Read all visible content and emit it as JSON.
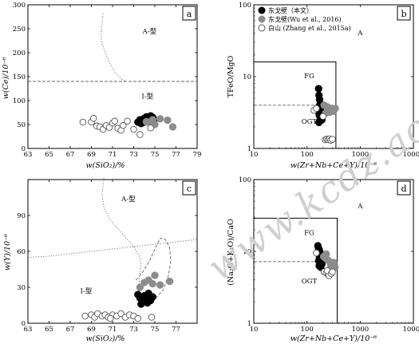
{
  "watermark": "www.kcdz.ac.cn",
  "colors": {
    "this_study": "#000000",
    "wu_2016": "#8c8c8c",
    "zhang_2015": "#ffffff",
    "zhang_stroke": "#555555",
    "boundary": "#666666",
    "frame": "#000000"
  },
  "legend": [
    {
      "label": "东戈壁（本文）",
      "fill": "#000000",
      "stroke": "#000000"
    },
    {
      "label": "东戈壁(Wu et al., 2016)",
      "fill": "#8c8c8c",
      "stroke": "#8c8c8c"
    },
    {
      "label": "白山 (Zhang et al., 2015a)",
      "fill": "#ffffff",
      "stroke": "#555555"
    }
  ],
  "chart_data": [
    {
      "id": "a",
      "type": "scatter",
      "panel_label": "a",
      "xlabel": "w(SiO₂)/%",
      "ylabel": "w(Ce)/10⁻⁶",
      "xlim": [
        63,
        79
      ],
      "ylim": [
        0,
        300
      ],
      "xticks": [
        63,
        65,
        67,
        69,
        71,
        73,
        75,
        77,
        79
      ],
      "yticks": [
        0,
        50,
        100,
        150,
        200,
        250,
        300
      ],
      "region_labels": [
        {
          "text": "A-型",
          "x": 74.5,
          "y": 240
        },
        {
          "text": "I-型",
          "x": 74.3,
          "y": 104
        }
      ],
      "boundaries": [
        {
          "style": "dash",
          "points": [
            [
              63,
              140
            ],
            [
              79,
              140
            ]
          ]
        },
        {
          "style": "dot",
          "points": [
            [
              70.1,
              282
            ],
            [
              70.0,
              260
            ],
            [
              69.9,
              240
            ],
            [
              70.0,
              220
            ],
            [
              70.3,
              200
            ],
            [
              70.7,
              180
            ],
            [
              71.2,
              160
            ],
            [
              71.8,
              145
            ],
            [
              72.3,
              140
            ]
          ]
        }
      ],
      "series": [
        {
          "name": "东戈壁（本文）",
          "points": [
            [
              73.4,
              55
            ],
            [
              73.6,
              60
            ],
            [
              73.8,
              58
            ],
            [
              74.0,
              63
            ],
            [
              74.2,
              66
            ],
            [
              74.4,
              62
            ],
            [
              74.6,
              68
            ],
            [
              74.8,
              65
            ],
            [
              74.0,
              55
            ],
            [
              73.7,
              52
            ],
            [
              74.3,
              58
            ],
            [
              74.9,
              60
            ]
          ]
        },
        {
          "name": "东戈壁(Wu et al., 2016)",
          "points": [
            [
              74.2,
              56
            ],
            [
              74.8,
              60
            ],
            [
              75.5,
              62
            ],
            [
              76.2,
              59
            ],
            [
              76.7,
              45
            ],
            [
              75.0,
              50
            ],
            [
              74.5,
              54
            ]
          ]
        },
        {
          "name": "白山 (Zhang et al., 2015a)",
          "points": [
            [
              68.2,
              55
            ],
            [
              69.0,
              55
            ],
            [
              69.2,
              63
            ],
            [
              69.5,
              47
            ],
            [
              69.8,
              45
            ],
            [
              70.1,
              40
            ],
            [
              70.4,
              48
            ],
            [
              70.7,
              44
            ],
            [
              71.0,
              53
            ],
            [
              71.2,
              57
            ],
            [
              71.5,
              42
            ],
            [
              71.8,
              38
            ],
            [
              72.4,
              57
            ],
            [
              73.0,
              40
            ],
            [
              73.6,
              29
            ],
            [
              74.6,
              43
            ],
            [
              72.0,
              48
            ]
          ]
        }
      ]
    },
    {
      "id": "b",
      "type": "scatter",
      "panel_label": "b",
      "xlabel": "w(Zr+Nb+Ce+Y)/10⁻⁶",
      "ylabel": "TFeO/MgO",
      "xscale": "log",
      "yscale": "log",
      "xlim": [
        10,
        10000
      ],
      "ylim": [
        1,
        100
      ],
      "xticks": [
        10,
        100,
        1000,
        10000
      ],
      "yticks": [
        1,
        10,
        100
      ],
      "region_labels": [
        {
          "text": "A",
          "x": 1000,
          "y": 38
        },
        {
          "text": "FG",
          "x": 110,
          "y": 9.5
        },
        {
          "text": "OGT",
          "x": 110,
          "y": 2.2
        }
      ],
      "boundaries": [
        {
          "style": "solid",
          "points": [
            [
              10,
              16
            ],
            [
              350,
              16
            ],
            [
              350,
              1
            ]
          ]
        },
        {
          "style": "dash",
          "points": [
            [
              10,
              4
            ],
            [
              350,
              4
            ]
          ]
        }
      ],
      "series": [
        {
          "name": "东戈壁（本文）",
          "points": [
            [
              165,
              6.8
            ],
            [
              168,
              5.5
            ],
            [
              172,
              4.8
            ],
            [
              178,
              4.2
            ],
            [
              170,
              3.9
            ],
            [
              175,
              3.6
            ],
            [
              180,
              3.4
            ],
            [
              165,
              3.2
            ],
            [
              185,
              3.1
            ],
            [
              170,
              2.9
            ],
            [
              178,
              2.7
            ],
            [
              190,
              2.5
            ],
            [
              168,
              2.3
            ]
          ]
        },
        {
          "name": "东戈壁(Wu et al., 2016)",
          "points": [
            [
              210,
              4.0
            ],
            [
              240,
              3.8
            ],
            [
              265,
              3.6
            ],
            [
              290,
              3.5
            ],
            [
              315,
              3.3
            ],
            [
              340,
              3.6
            ],
            [
              225,
              3.1
            ],
            [
              270,
              3.2
            ],
            [
              300,
              3.4
            ]
          ]
        },
        {
          "name": "白山 (Zhang et al., 2015a)",
          "points": [
            [
              135,
              3.4
            ],
            [
              150,
              3.6
            ],
            [
              200,
              2.8
            ],
            [
              220,
              1.32
            ],
            [
              235,
              1.35
            ],
            [
              250,
              1.32
            ],
            [
              265,
              1.36
            ],
            [
              280,
              1.3
            ],
            [
              300,
              1.34
            ]
          ]
        }
      ]
    },
    {
      "id": "c",
      "type": "scatter",
      "panel_label": "c",
      "xlabel": "w(SiO₂)/%",
      "ylabel": "w(Y)/10⁻⁶",
      "xlim": [
        63,
        79
      ],
      "ylim": [
        0,
        120
      ],
      "xticks": [
        63,
        65,
        67,
        69,
        71,
        73,
        75,
        77,
        79
      ],
      "yticks": [
        0,
        30,
        60,
        90,
        120
      ],
      "xtick_labels_visible": [
        63,
        65,
        67,
        69,
        71,
        73,
        75,
        77
      ],
      "ytick_labels_visible": [
        0,
        30,
        60,
        90
      ],
      "region_labels": [
        {
          "text": "A-型",
          "x": 72.5,
          "y": 102
        },
        {
          "text": "I-型",
          "x": 68.5,
          "y": 25
        }
      ],
      "boundaries": [
        {
          "style": "dot",
          "points": [
            [
              63,
              55
            ],
            [
              65,
              56
            ],
            [
              67,
              58
            ],
            [
              69,
              60
            ],
            [
              71,
              62
            ],
            [
              73,
              64
            ],
            [
              75,
              66
            ],
            [
              77,
              68
            ],
            [
              79,
              70
            ]
          ]
        },
        {
          "style": "dot",
          "points": [
            [
              70.2,
              121
            ],
            [
              70.0,
              108
            ],
            [
              70.2,
              96
            ],
            [
              70.8,
              86
            ],
            [
              71.6,
              78
            ],
            [
              72.4,
              70
            ],
            [
              73.0,
              64
            ],
            [
              73.5,
              57
            ],
            [
              73.7,
              50
            ],
            [
              73.6,
              42
            ],
            [
              73.5,
              34
            ],
            [
              73.5,
              26
            ],
            [
              73.7,
              18
            ]
          ]
        },
        {
          "style": "dash",
          "points": [
            [
              73.2,
              36
            ],
            [
              73.8,
              42
            ],
            [
              74.5,
              52
            ],
            [
              75.0,
              62
            ],
            [
              75.5,
              71
            ],
            [
              76.0,
              70
            ],
            [
              76.4,
              63
            ],
            [
              76.5,
              52
            ],
            [
              76.3,
              40
            ],
            [
              75.8,
              28
            ],
            [
              75.0,
              20
            ],
            [
              74.2,
              17
            ]
          ]
        }
      ],
      "series": [
        {
          "name": "东戈壁（本文）",
          "points": [
            [
              73.4,
              24
            ],
            [
              73.6,
              21
            ],
            [
              73.8,
              18
            ],
            [
              74.0,
              23
            ],
            [
              74.2,
              20
            ],
            [
              74.4,
              25
            ],
            [
              74.6,
              19
            ],
            [
              74.8,
              22
            ],
            [
              73.7,
              16
            ],
            [
              74.3,
              17
            ]
          ]
        },
        {
          "name": "东戈壁(Wu et al., 2016)",
          "points": [
            [
              73.6,
              30
            ],
            [
              74.0,
              34
            ],
            [
              74.4,
              36
            ],
            [
              74.8,
              33
            ],
            [
              75.5,
              32
            ],
            [
              76.4,
              35
            ],
            [
              75.0,
              40
            ]
          ]
        },
        {
          "name": "白山 (Zhang et al., 2015a)",
          "points": [
            [
              68.4,
              6
            ],
            [
              69.0,
              7
            ],
            [
              69.3,
              5
            ],
            [
              69.6,
              8
            ],
            [
              70.0,
              6
            ],
            [
              70.3,
              7
            ],
            [
              70.6,
              5
            ],
            [
              71.0,
              7
            ],
            [
              71.4,
              6
            ],
            [
              71.8,
              8
            ],
            [
              72.2,
              5
            ],
            [
              72.6,
              7
            ],
            [
              73.0,
              6
            ],
            [
              73.4,
              4
            ],
            [
              74.7,
              5
            ],
            [
              70.8,
              4
            ]
          ]
        }
      ]
    },
    {
      "id": "d",
      "type": "scatter",
      "panel_label": "d",
      "xlabel": "w(Zr+Nb+Ce+Y)/10⁻⁶",
      "ylabel": "(Na₂O+K₂O)/CaO",
      "xscale": "log",
      "yscale": "log",
      "xlim": [
        10,
        10000
      ],
      "ylim": [
        1,
        100
      ],
      "xticks": [
        10,
        100,
        1000,
        10000
      ],
      "yticks": [
        1,
        10,
        100
      ],
      "region_labels": [
        {
          "text": "A",
          "x": 1000,
          "y": 40
        },
        {
          "text": "FG",
          "x": 110,
          "y": 17
        },
        {
          "text": "OGT",
          "x": 110,
          "y": 3.6
        }
      ],
      "boundaries": [
        {
          "style": "solid",
          "points": [
            [
              10,
              29
            ],
            [
              370,
              29
            ],
            [
              370,
              1
            ]
          ]
        },
        {
          "style": "dash",
          "points": [
            [
              10,
              7.2
            ],
            [
              370,
              7.2
            ]
          ]
        }
      ],
      "series": [
        {
          "name": "东戈壁（本文）",
          "points": [
            [
              160,
              12
            ],
            [
              165,
              11
            ],
            [
              170,
              10.5
            ],
            [
              175,
              9.8
            ],
            [
              168,
              9
            ],
            [
              180,
              8.6
            ],
            [
              172,
              8.2
            ],
            [
              185,
              7.8
            ],
            [
              165,
              7.4
            ],
            [
              178,
              7.0
            ],
            [
              190,
              6.7
            ],
            [
              170,
              6.3
            ],
            [
              182,
              6.0
            ]
          ]
        },
        {
          "name": "东戈壁(Wu et al., 2016)",
          "points": [
            [
              205,
              8.5
            ],
            [
              225,
              8.0
            ],
            [
              245,
              7.6
            ],
            [
              265,
              7.2
            ],
            [
              290,
              6.8
            ],
            [
              310,
              6.4
            ],
            [
              335,
              6.0
            ],
            [
              230,
              9.2
            ],
            [
              280,
              6.3
            ],
            [
              320,
              7.0
            ]
          ]
        },
        {
          "name": "白山 (Zhang et al., 2015a)",
          "points": [
            [
              150,
              9.5
            ],
            [
              210,
              5.2
            ],
            [
              230,
              5.0
            ],
            [
              250,
              4.8
            ],
            [
              270,
              5.1
            ],
            [
              260,
              4.6
            ],
            [
              240,
              5.4
            ],
            [
              285,
              4.9
            ],
            [
              300,
              5.2
            ]
          ]
        }
      ]
    }
  ]
}
